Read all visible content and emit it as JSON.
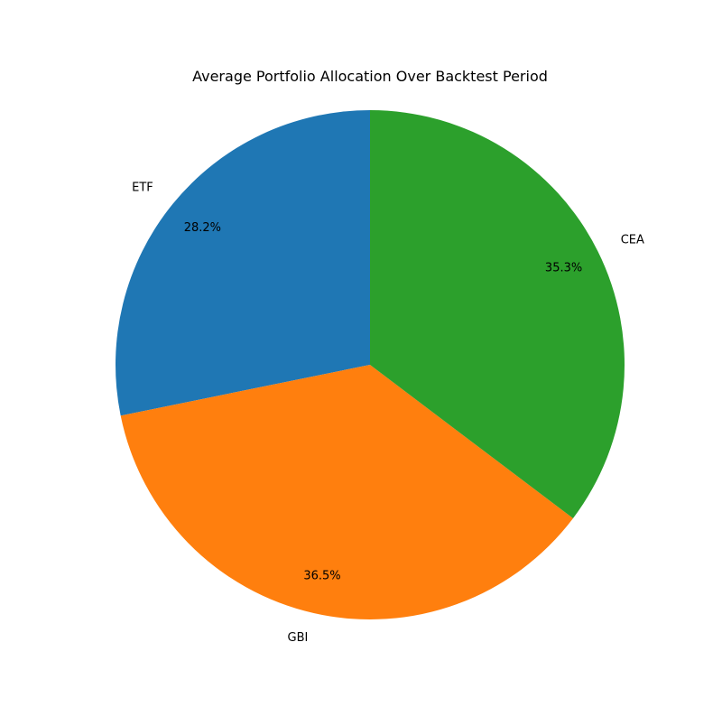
{
  "chart_data": {
    "type": "pie",
    "title": "Average Portfolio Allocation Over Backtest Period",
    "categories": [
      "ETF",
      "GBI",
      "CEA"
    ],
    "values": [
      28.2,
      36.5,
      35.3
    ],
    "value_labels": [
      "28.2%",
      "36.5%",
      "35.3%"
    ],
    "colors": [
      "#1f77b4",
      "#ff7f0e",
      "#2ca02c"
    ],
    "start_angle_deg": 90,
    "direction": "counterclockwise",
    "legend": "none"
  }
}
